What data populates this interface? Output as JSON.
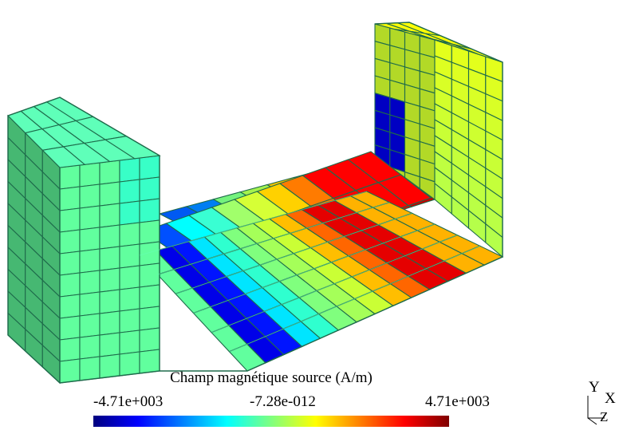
{
  "field": {
    "title": "Champ magnétique source (A/m)",
    "min_label": "-4.71e+003",
    "mid_label": "-7.28e-012",
    "max_label": "4.71e+003",
    "min_value": -4710,
    "max_value": 4710,
    "colormap": [
      "#00007f",
      "#0000ff",
      "#007fff",
      "#00ffff",
      "#7fff7f",
      "#ffff00",
      "#ff7f00",
      "#ff0000",
      "#7f0000"
    ]
  },
  "axes": {
    "y": "Y",
    "x": "X",
    "z": "Z"
  },
  "colors": {
    "mesh_edges": "#1e6b4b",
    "mesh_highlight": "#66ffbb"
  },
  "model": {
    "type": "U-shaped magnetic core hexahedral mesh"
  }
}
